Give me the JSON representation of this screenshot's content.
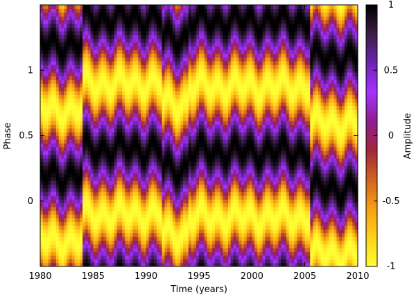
{
  "chart_data": {
    "type": "heatmap",
    "title": "",
    "xlabel": "Time (years)",
    "ylabel": "Phase",
    "xlim": [
      1980,
      2010
    ],
    "ylim": [
      -0.5,
      1.5
    ],
    "x_ticks": [
      "1980",
      "1985",
      "1990",
      "1995",
      "2000",
      "2005",
      "2010"
    ],
    "y_ticks": [
      "0",
      "0.5",
      "1"
    ],
    "colorbar": {
      "label": "Amplitude",
      "range": [
        -1,
        1
      ],
      "ticks": [
        "1",
        "0.5",
        "0",
        "-0.5",
        "-1"
      ],
      "colors": [
        "#ffff33",
        "#ffd21e",
        "#f5a014",
        "#d2641e",
        "#a0283c",
        "#8c1e8c",
        "#a532ff",
        "#6e23b4",
        "#3c1e46",
        "#000000"
      ]
    },
    "pattern": {
      "description_free_note": "",
      "period_in_phase": 1.0,
      "segments": [
        {
          "x_start": 1980.0,
          "x_end": 1984.0,
          "phase_of_maximum": 0.2
        },
        {
          "x_start": 1984.0,
          "x_end": 1991.5,
          "phase_of_maximum": 0.4
        },
        {
          "x_start": 1991.5,
          "x_end": 1994.0,
          "phase_of_maximum": 0.25
        },
        {
          "x_start": 1994.0,
          "x_end": 2005.5,
          "phase_of_maximum": 0.38
        },
        {
          "x_start": 2005.5,
          "x_end": 2010.0,
          "phase_of_maximum": 0.1
        }
      ]
    }
  }
}
